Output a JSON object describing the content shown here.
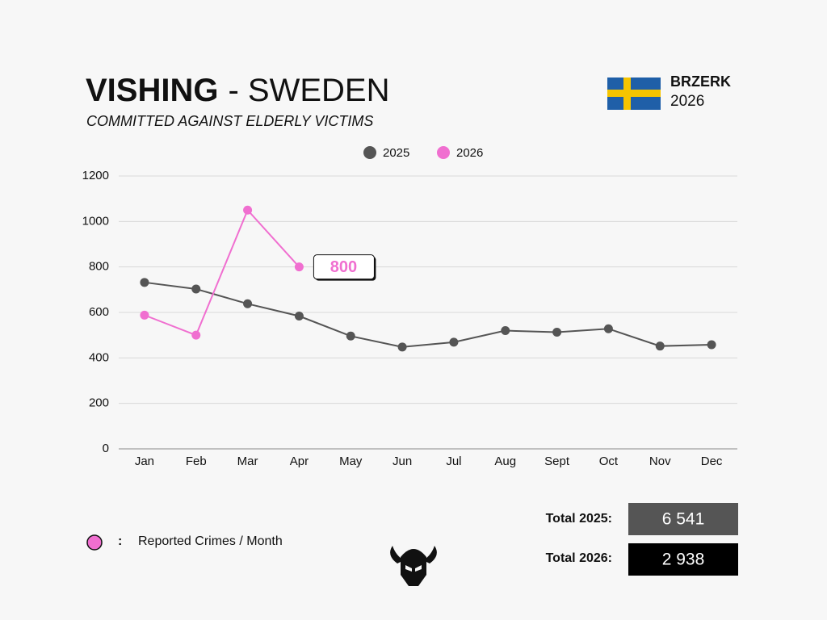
{
  "chart_data": {
    "type": "line",
    "title": "VISHING",
    "title_rest": "- SWEDEN",
    "subtitle": "COMMITTED AGAINST ELDERLY VICTIMS",
    "categories": [
      "Jan",
      "Feb",
      "Mar",
      "Apr",
      "May",
      "Jun",
      "Jul",
      "Aug",
      "Sept",
      "Oct",
      "Nov",
      "Dec"
    ],
    "series": [
      {
        "name": "2025",
        "color": "#555555",
        "values": [
          732,
          703,
          638,
          584,
          496,
          448,
          469,
          520,
          513,
          528,
          452,
          458
        ]
      },
      {
        "name": "2026",
        "color": "#f06fd0",
        "values": [
          588,
          500,
          1050,
          800,
          null,
          null,
          null,
          null,
          null,
          null,
          null,
          null
        ]
      }
    ],
    "ylim": [
      0,
      1200
    ],
    "yticks": [
      0,
      200,
      400,
      600,
      800,
      1000,
      1200
    ],
    "grid": true,
    "legend": "top"
  },
  "brand": {
    "name": "BRZERK",
    "year": "2026"
  },
  "note": {
    "separator": ":",
    "text": "Reported Crimes / Month"
  },
  "totals": [
    {
      "label": "Total 2025:",
      "value": "6 541"
    },
    {
      "label": "Total 2026:",
      "value": "2 938"
    }
  ]
}
